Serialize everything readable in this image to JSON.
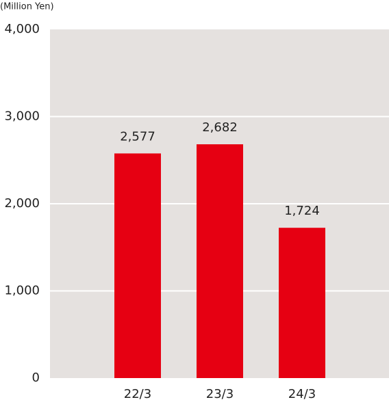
{
  "chart_data": {
    "type": "bar",
    "y_label": "(Million Yen)",
    "categories": [
      "22/3",
      "23/3",
      "24/3"
    ],
    "values": [
      2577,
      2682,
      1724
    ],
    "value_labels": [
      "2,577",
      "2,682",
      "1,724"
    ],
    "color": "#e60012",
    "ylim": [
      0,
      4000
    ],
    "yticks": [
      0,
      {
        "value": 1000,
        "label": "1,000"
      },
      {
        "value": 2000,
        "label": "2,000"
      },
      {
        "value": 3000,
        "label": "3,000"
      },
      {
        "value": 4000,
        "label": "4,000"
      }
    ],
    "grid": true
  }
}
